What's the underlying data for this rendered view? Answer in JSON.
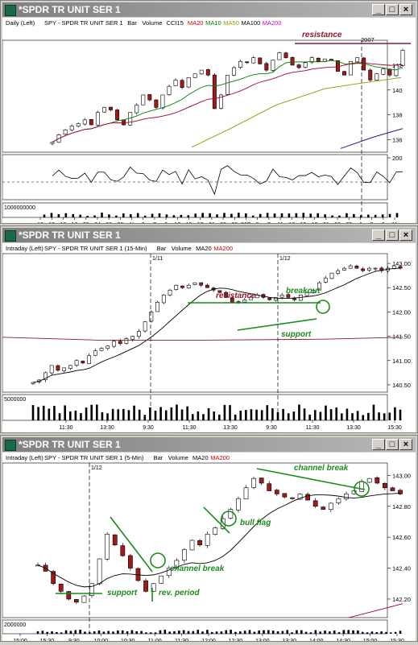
{
  "panels": [
    {
      "window_title": "*SPDR TR UNIT SER 1",
      "period": "Daily",
      "side": "(Left)",
      "legend": [
        {
          "text": "SPY - SPDR TR UNIT SER 1",
          "color": "#000000"
        },
        {
          "text": "Bar",
          "color": "#000000"
        },
        {
          "text": "Volume",
          "color": "#000000"
        },
        {
          "text": "CCI15",
          "color": "#000000"
        },
        {
          "text": "MA20",
          "color": "#cc0000"
        },
        {
          "text": "MA10",
          "color": "#008000"
        },
        {
          "text": "MA50",
          "color": "#999900"
        },
        {
          "text": "MA100",
          "color": "#000000"
        },
        {
          "text": "MA200",
          "color": "#cc00cc"
        }
      ],
      "year_marker": "2007",
      "y_ticks": [
        "142",
        "140",
        "138",
        "136"
      ],
      "osc_tick": "200",
      "vol_label": "1000000000",
      "x_ticks": [
        "10",
        "12",
        "16",
        "18",
        "20",
        "24",
        "26",
        "30",
        "N",
        "3",
        "7",
        "9",
        "13",
        "15",
        "17",
        "21",
        "23",
        "28",
        "30D",
        "5",
        "7",
        "11",
        "13",
        "15",
        "19",
        "21",
        "26",
        "28",
        "J",
        "5",
        "9",
        "11"
      ],
      "annotations": [
        {
          "text": "resistance",
          "color": "#8b1a2b"
        }
      ]
    },
    {
      "window_title": "*SPDR TR UNIT SER 1",
      "period": "Intraday",
      "side": "(Left)",
      "legend": [
        {
          "text": "SPY - SPDR TR UNIT SER 1 (15-Min)",
          "color": "#000000"
        },
        {
          "text": "Bar",
          "color": "#000000"
        },
        {
          "text": "Volume",
          "color": "#000000"
        },
        {
          "text": "MA20",
          "color": "#000000"
        },
        {
          "text": "MA200",
          "color": "#cc0000"
        }
      ],
      "day_markers": [
        "1/11",
        "1/12"
      ],
      "y_ticks": [
        "143.00",
        "142.50",
        "142.00",
        "141.50",
        "141.00",
        "140.50"
      ],
      "vol_label": "5000000",
      "x_ticks": [
        "11:30",
        "13:30",
        "9:30",
        "11:30",
        "13:30",
        "9:30",
        "11:30",
        "13:30",
        "15:30"
      ],
      "annotations": [
        {
          "text": "resistance",
          "color": "#8b1a2b"
        },
        {
          "text": "breakout",
          "color": "#1a8c1a"
        },
        {
          "text": "support",
          "color": "#1a8c1a"
        }
      ]
    },
    {
      "window_title": "*SPDR TR UNIT SER 1",
      "period": "Intraday",
      "side": "(Left)",
      "legend": [
        {
          "text": "SPY - SPDR TR UNIT SER 1 (5-Min)",
          "color": "#000000"
        },
        {
          "text": "Bar",
          "color": "#000000"
        },
        {
          "text": "Volume",
          "color": "#000000"
        },
        {
          "text": "MA20",
          "color": "#000000"
        },
        {
          "text": "MA200",
          "color": "#cc0000"
        }
      ],
      "day_markers": [
        "1/12"
      ],
      "y_ticks": [
        "143.00",
        "142.80",
        "142.60",
        "142.40",
        "142.20"
      ],
      "vol_label": "2000000",
      "x_ticks": [
        "15:00",
        "15:30",
        "9:30",
        "10:00",
        "10:30",
        "11:00",
        "11:30",
        "12:00",
        "12:30",
        "13:00",
        "13:30",
        "14:00",
        "14:30",
        "15:00",
        "15:30"
      ],
      "annotations": [
        {
          "text": "channel break",
          "color": "#1a8c1a"
        },
        {
          "text": "bull flag",
          "color": "#1a8c1a"
        },
        {
          "text": "channel break",
          "color": "#1a8c1a"
        },
        {
          "text": "support",
          "color": "#1a8c1a"
        },
        {
          "text": "rev. period",
          "color": "#1a8c1a"
        }
      ]
    }
  ],
  "chart_data": [
    {
      "type": "bar",
      "title": "",
      "ylim": [
        135,
        144
      ],
      "y_ticks": [
        136,
        138,
        140,
        142
      ],
      "series": [
        {
          "name": "Price",
          "values": [
            135.8,
            136.4,
            136.8,
            137.1,
            137.3,
            137.6,
            137.2,
            138.2,
            138.6,
            138.4,
            137.6,
            137.2,
            138.2,
            138.8,
            139.6,
            139.2,
            138.6,
            139.6,
            140.3,
            140.8,
            140.2,
            141.0,
            141.3,
            141.6,
            141.2,
            138.5,
            139.6,
            141.2,
            141.8,
            142.3,
            142.2,
            142.6,
            142.1,
            141.6,
            142.4,
            143.0,
            142.6,
            142.0,
            141.8,
            142.2,
            142.6,
            142.3,
            142.5,
            142.4,
            141.5,
            141.2,
            142.3,
            142.6,
            141.6,
            140.8,
            141.3,
            141.7,
            141.2,
            142.0,
            143.2
          ]
        },
        {
          "name": "MA10",
          "values": []
        },
        {
          "name": "MA20",
          "values": []
        },
        {
          "name": "MA50",
          "values": []
        },
        {
          "name": "MA100",
          "values": []
        }
      ]
    },
    {
      "type": "bar",
      "title": "",
      "ylim": [
        140.35,
        143.2
      ],
      "y_ticks": [
        140.5,
        141.0,
        141.5,
        142.0,
        142.5,
        143.0
      ],
      "series": [
        {
          "name": "Price",
          "values": [
            140.55,
            140.6,
            140.75,
            140.9,
            140.8,
            140.85,
            140.9,
            141.0,
            140.95,
            141.1,
            141.2,
            141.25,
            141.3,
            141.4,
            141.35,
            141.45,
            141.5,
            141.6,
            141.8,
            142.0,
            142.2,
            142.35,
            142.45,
            142.55,
            142.5,
            142.55,
            142.6,
            142.55,
            142.5,
            142.45,
            142.4,
            142.3,
            142.2,
            142.2,
            142.25,
            142.3,
            142.35,
            142.3,
            142.25,
            142.3,
            142.35,
            142.3,
            142.25,
            142.35,
            142.4,
            142.45,
            142.6,
            142.7,
            142.8,
            142.85,
            142.9,
            142.95,
            142.9,
            142.85,
            142.9,
            142.9,
            142.85,
            142.9,
            142.95,
            142.9
          ]
        },
        {
          "name": "MA20",
          "values": []
        },
        {
          "name": "MA200",
          "values": []
        }
      ]
    },
    {
      "type": "bar",
      "title": "",
      "ylim": [
        142.08,
        143.08
      ],
      "y_ticks": [
        142.2,
        142.4,
        142.6,
        142.8,
        143.0
      ],
      "series": [
        {
          "name": "Price",
          "values": [
            142.42,
            142.38,
            142.3,
            142.25,
            142.2,
            142.18,
            142.22,
            142.3,
            142.46,
            142.62,
            142.55,
            142.48,
            142.4,
            142.32,
            142.25,
            142.3,
            142.35,
            142.4,
            142.45,
            142.52,
            142.58,
            142.55,
            142.62,
            142.66,
            142.72,
            142.78,
            142.85,
            142.92,
            142.98,
            142.95,
            142.9,
            142.88,
            142.86,
            142.85,
            142.88,
            142.84,
            142.8,
            142.78,
            142.82,
            142.85,
            142.88,
            142.9,
            142.96,
            142.98,
            142.95,
            142.92,
            142.9,
            142.88
          ]
        },
        {
          "name": "MA20",
          "values": []
        },
        {
          "name": "MA200",
          "values": []
        }
      ]
    }
  ]
}
